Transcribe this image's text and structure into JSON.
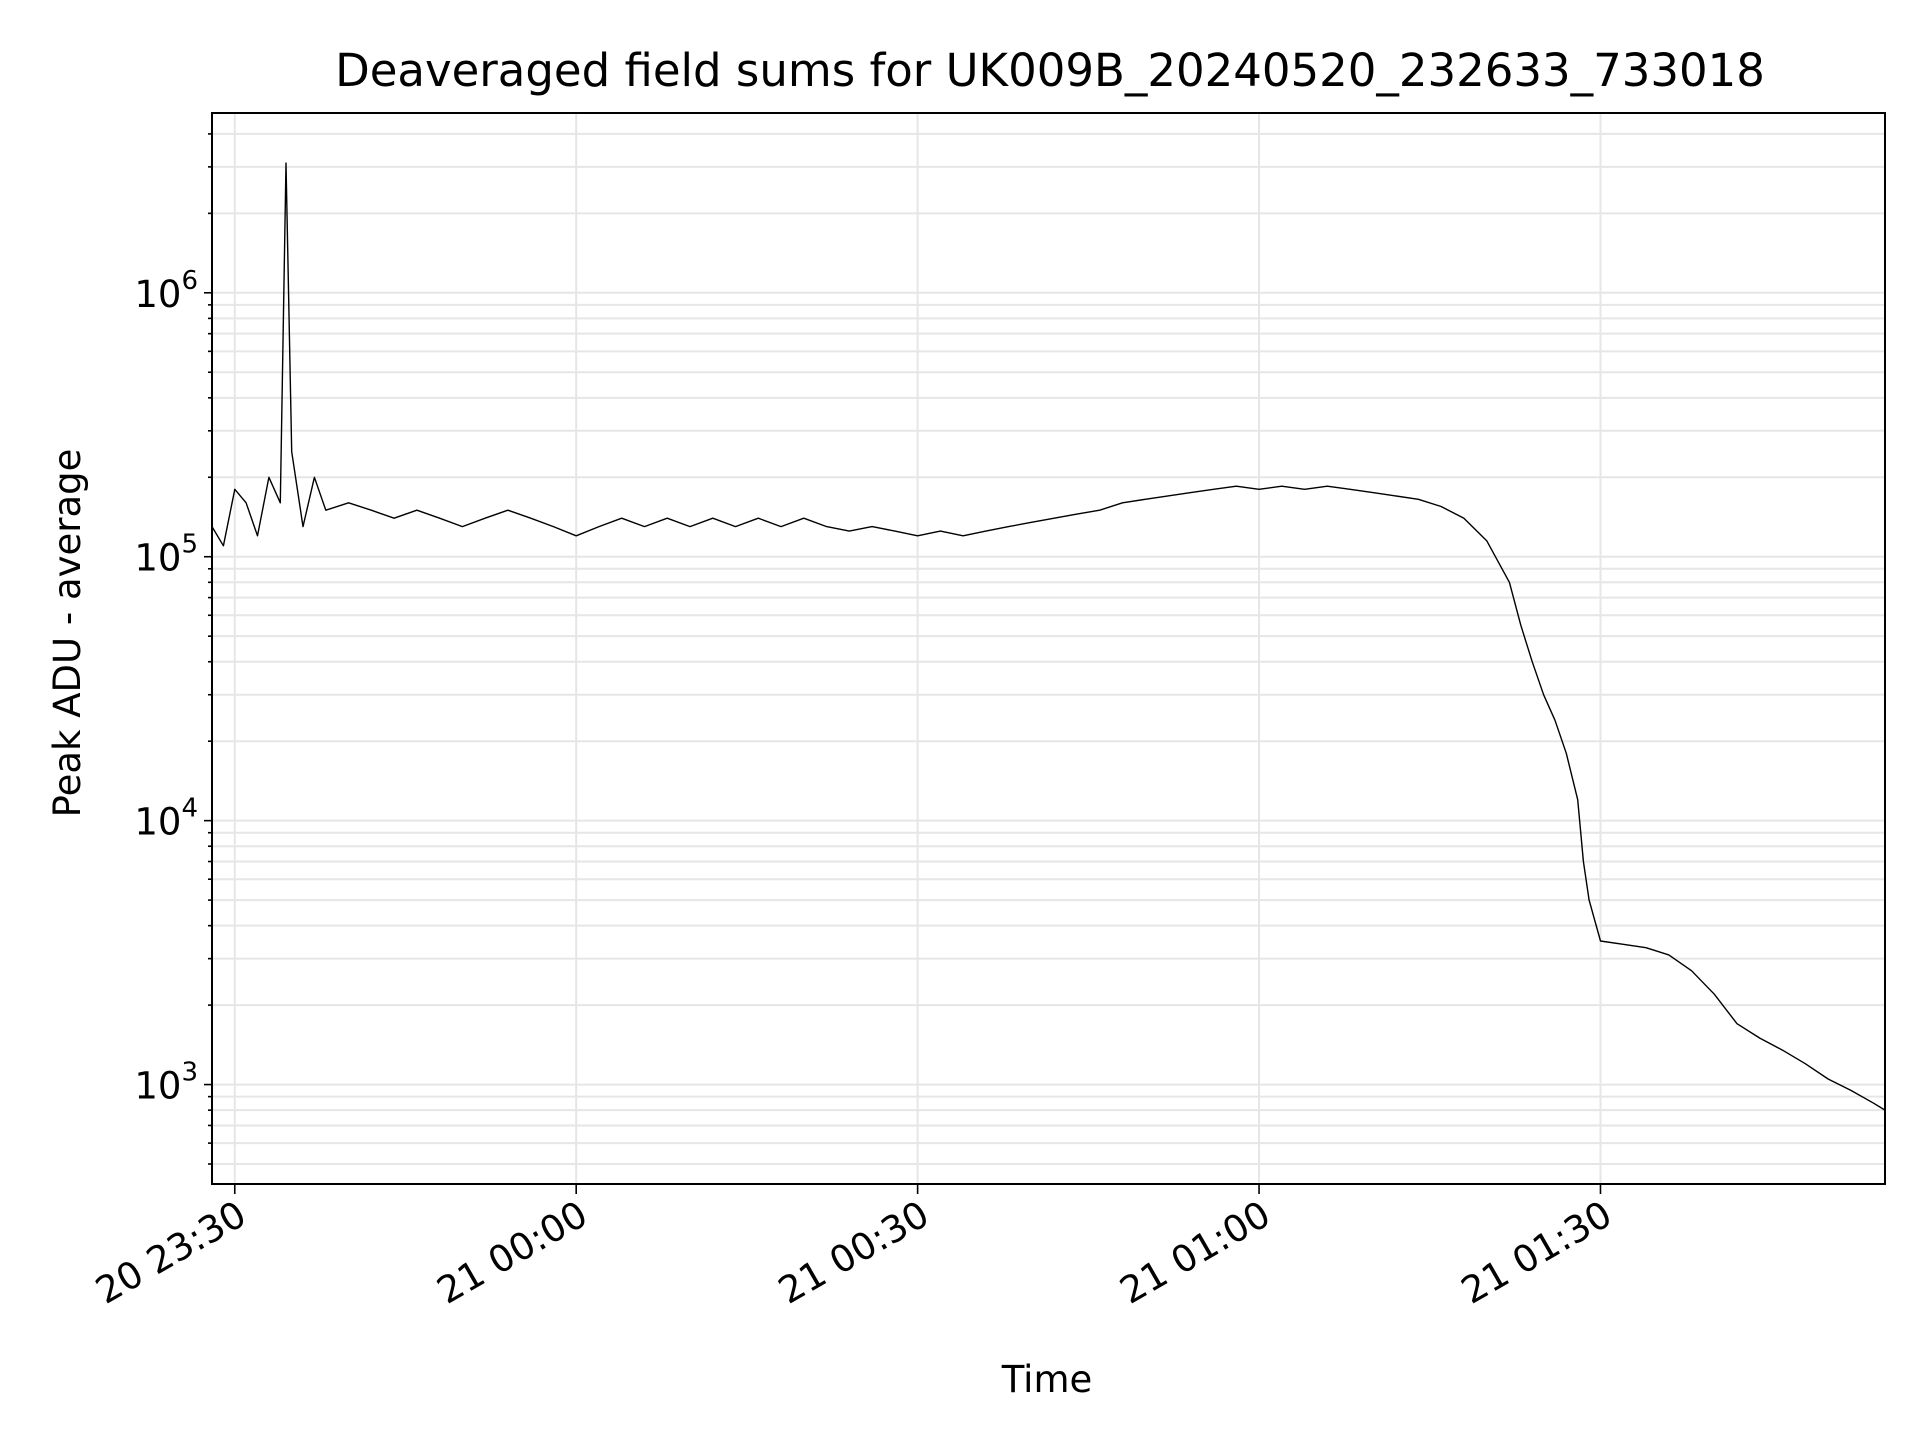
{
  "chart_data": {
    "type": "line",
    "title": "Deaveraged field sums for UK009B_20240520_232633_733018",
    "xlabel": "Time",
    "ylabel": "Peak ADU - average",
    "y_scale": "log",
    "ylim": [
      420,
      4800000
    ],
    "xlim": [
      "2024-05-20T23:28",
      "2024-05-21T01:55"
    ],
    "grid": true,
    "legend": "none",
    "line_color": "#000000",
    "grid_color": "#e6e6e6",
    "x_ticks": [
      {
        "t": "2024-05-20T23:30",
        "label": "20 23:30"
      },
      {
        "t": "2024-05-21T00:00",
        "label": "21 00:00"
      },
      {
        "t": "2024-05-21T00:30",
        "label": "21 00:30"
      },
      {
        "t": "2024-05-21T01:00",
        "label": "21 01:00"
      },
      {
        "t": "2024-05-21T01:30",
        "label": "21 01:30"
      }
    ],
    "y_ticks": [
      {
        "v": 1000,
        "base": "10",
        "exp": "3"
      },
      {
        "v": 10000,
        "base": "10",
        "exp": "4"
      },
      {
        "v": 100000,
        "base": "10",
        "exp": "5"
      },
      {
        "v": 1000000,
        "base": "10",
        "exp": "6"
      }
    ],
    "series": [
      {
        "values": [
          [
            "2024-05-20T23:28",
            130000
          ],
          [
            "2024-05-20T23:29",
            110000
          ],
          [
            "2024-05-20T23:30",
            180000
          ],
          [
            "2024-05-20T23:31",
            160000
          ],
          [
            "2024-05-20T23:32",
            120000
          ],
          [
            "2024-05-20T23:33",
            200000
          ],
          [
            "2024-05-20T23:34",
            160000
          ],
          [
            "2024-05-20T23:34:30",
            3100000
          ],
          [
            "2024-05-20T23:35",
            250000
          ],
          [
            "2024-05-20T23:36",
            130000
          ],
          [
            "2024-05-20T23:37",
            200000
          ],
          [
            "2024-05-20T23:38",
            150000
          ],
          [
            "2024-05-20T23:40",
            160000
          ],
          [
            "2024-05-20T23:42",
            150000
          ],
          [
            "2024-05-20T23:44",
            140000
          ],
          [
            "2024-05-20T23:46",
            150000
          ],
          [
            "2024-05-20T23:48",
            140000
          ],
          [
            "2024-05-20T23:50",
            130000
          ],
          [
            "2024-05-20T23:52",
            140000
          ],
          [
            "2024-05-20T23:54",
            150000
          ],
          [
            "2024-05-20T23:56",
            140000
          ],
          [
            "2024-05-20T23:58",
            130000
          ],
          [
            "2024-05-21T00:00",
            120000
          ],
          [
            "2024-05-21T00:02",
            130000
          ],
          [
            "2024-05-21T00:04",
            140000
          ],
          [
            "2024-05-21T00:06",
            130000
          ],
          [
            "2024-05-21T00:08",
            140000
          ],
          [
            "2024-05-21T00:10",
            130000
          ],
          [
            "2024-05-21T00:12",
            140000
          ],
          [
            "2024-05-21T00:14",
            130000
          ],
          [
            "2024-05-21T00:16",
            140000
          ],
          [
            "2024-05-21T00:18",
            130000
          ],
          [
            "2024-05-21T00:20",
            140000
          ],
          [
            "2024-05-21T00:22",
            130000
          ],
          [
            "2024-05-21T00:24",
            125000
          ],
          [
            "2024-05-21T00:26",
            130000
          ],
          [
            "2024-05-21T00:28",
            125000
          ],
          [
            "2024-05-21T00:30",
            120000
          ],
          [
            "2024-05-21T00:32",
            125000
          ],
          [
            "2024-05-21T00:34",
            120000
          ],
          [
            "2024-05-21T00:36",
            125000
          ],
          [
            "2024-05-21T00:38",
            130000
          ],
          [
            "2024-05-21T00:40",
            135000
          ],
          [
            "2024-05-21T00:42",
            140000
          ],
          [
            "2024-05-21T00:44",
            145000
          ],
          [
            "2024-05-21T00:46",
            150000
          ],
          [
            "2024-05-21T00:48",
            160000
          ],
          [
            "2024-05-21T00:50",
            165000
          ],
          [
            "2024-05-21T00:52",
            170000
          ],
          [
            "2024-05-21T00:54",
            175000
          ],
          [
            "2024-05-21T00:56",
            180000
          ],
          [
            "2024-05-21T00:58",
            185000
          ],
          [
            "2024-05-21T01:00",
            180000
          ],
          [
            "2024-05-21T01:02",
            185000
          ],
          [
            "2024-05-21T01:04",
            180000
          ],
          [
            "2024-05-21T01:06",
            185000
          ],
          [
            "2024-05-21T01:08",
            180000
          ],
          [
            "2024-05-21T01:10",
            175000
          ],
          [
            "2024-05-21T01:12",
            170000
          ],
          [
            "2024-05-21T01:14",
            165000
          ],
          [
            "2024-05-21T01:16",
            155000
          ],
          [
            "2024-05-21T01:18",
            140000
          ],
          [
            "2024-05-21T01:20",
            115000
          ],
          [
            "2024-05-21T01:22",
            80000
          ],
          [
            "2024-05-21T01:23",
            55000
          ],
          [
            "2024-05-21T01:24",
            40000
          ],
          [
            "2024-05-21T01:25",
            30000
          ],
          [
            "2024-05-21T01:26",
            24000
          ],
          [
            "2024-05-21T01:27",
            18000
          ],
          [
            "2024-05-21T01:28",
            12000
          ],
          [
            "2024-05-21T01:28:30",
            7000
          ],
          [
            "2024-05-21T01:29",
            5000
          ],
          [
            "2024-05-21T01:30",
            3500
          ],
          [
            "2024-05-21T01:32",
            3400
          ],
          [
            "2024-05-21T01:34",
            3300
          ],
          [
            "2024-05-21T01:36",
            3100
          ],
          [
            "2024-05-21T01:38",
            2700
          ],
          [
            "2024-05-21T01:40",
            2200
          ],
          [
            "2024-05-21T01:42",
            1700
          ],
          [
            "2024-05-21T01:44",
            1500
          ],
          [
            "2024-05-21T01:46",
            1350
          ],
          [
            "2024-05-21T01:48",
            1200
          ],
          [
            "2024-05-21T01:50",
            1050
          ],
          [
            "2024-05-21T01:52",
            950
          ],
          [
            "2024-05-21T01:54",
            850
          ],
          [
            "2024-05-21T01:55",
            800
          ]
        ]
      }
    ]
  }
}
